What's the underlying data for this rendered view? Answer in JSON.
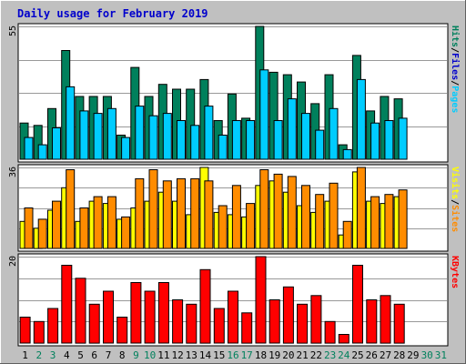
{
  "chart_data": {
    "type": "bar",
    "title": "Daily usage for February 2019",
    "categories": [
      "1",
      "2",
      "3",
      "4",
      "5",
      "6",
      "7",
      "8",
      "9",
      "10",
      "11",
      "12",
      "13",
      "14",
      "15",
      "16",
      "17",
      "18",
      "19",
      "20",
      "21",
      "22",
      "23",
      "24",
      "25",
      "26",
      "27",
      "28",
      "29",
      "30",
      "31"
    ],
    "weekend_days": [
      "2",
      "3",
      "9",
      "10",
      "16",
      "17",
      "23",
      "24",
      "30",
      "31"
    ],
    "colors": {
      "title": "#0000cc",
      "hits": "#00805c",
      "files": "#00ccff",
      "pages": "#00ccff",
      "visits": "#ffff00",
      "sites": "#ff8c00",
      "kbytes": "#ff0000",
      "weekday_label": "#000000",
      "weekend_label": "#00805c",
      "background": "#c0c0c0",
      "panel": "#ffffff",
      "grid": "#999999"
    },
    "panels": [
      {
        "name": "hits-files",
        "ymax": 55,
        "ymax_label": "55",
        "legend": [
          {
            "text": "Pages",
            "color": "#00ccff"
          },
          {
            "text": "Files",
            "color": "#0000cc"
          },
          {
            "text": "Hits",
            "color": "#00805c"
          }
        ],
        "series": [
          {
            "name": "Hits",
            "values": [
              15,
              14,
              21,
              45,
              26,
              26,
              26,
              10,
              38,
              26,
              31,
              29,
              29,
              33,
              16,
              27,
              17,
              55,
              36,
              35,
              32,
              23,
              35,
              6,
              43,
              20,
              26,
              25,
              null,
              null,
              null
            ]
          },
          {
            "name": "Files",
            "values": [
              9,
              6,
              13,
              30,
              20,
              19,
              21,
              9,
              22,
              18,
              19,
              16,
              14,
              22,
              10,
              16,
              16,
              37,
              16,
              25,
              19,
              12,
              21,
              4,
              33,
              15,
              16,
              17,
              null,
              null,
              null
            ]
          }
        ]
      },
      {
        "name": "visits-sites",
        "ymax": 36,
        "ymax_label": "36",
        "legend": [
          {
            "text": "Sites",
            "color": "#ff8c00"
          },
          {
            "text": "Visits",
            "color": "#ffff00"
          }
        ],
        "series": [
          {
            "name": "Visits",
            "values": [
              12,
              9,
              17,
              27,
              12,
              21,
              20,
              13,
              18,
              21,
              25,
              21,
              15,
              36,
              16,
              15,
              14,
              28,
              30,
              25,
              19,
              16,
              21,
              6,
              34,
              21,
              20,
              23,
              null,
              null,
              null
            ]
          },
          {
            "name": "Sites",
            "values": [
              18,
              13,
              21,
              35,
              18,
              23,
              23,
              14,
              31,
              35,
              30,
              31,
              31,
              30,
              19,
              28,
              20,
              35,
              33,
              32,
              28,
              24,
              29,
              12,
              36,
              23,
              24,
              26,
              null,
              null,
              null
            ]
          }
        ]
      },
      {
        "name": "kbytes",
        "ymax": 20,
        "ymax_label": "20",
        "legend": [
          {
            "text": "KBytes",
            "color": "#ff0000"
          }
        ],
        "series": [
          {
            "name": "KBytes",
            "values": [
              6,
              5,
              8,
              18,
              15,
              9,
              12,
              6,
              14,
              12,
              14,
              10,
              9,
              17,
              8,
              12,
              7,
              20,
              10,
              13,
              9,
              11,
              5,
              2,
              18,
              10,
              11,
              9,
              null,
              null,
              null
            ]
          }
        ]
      }
    ]
  }
}
